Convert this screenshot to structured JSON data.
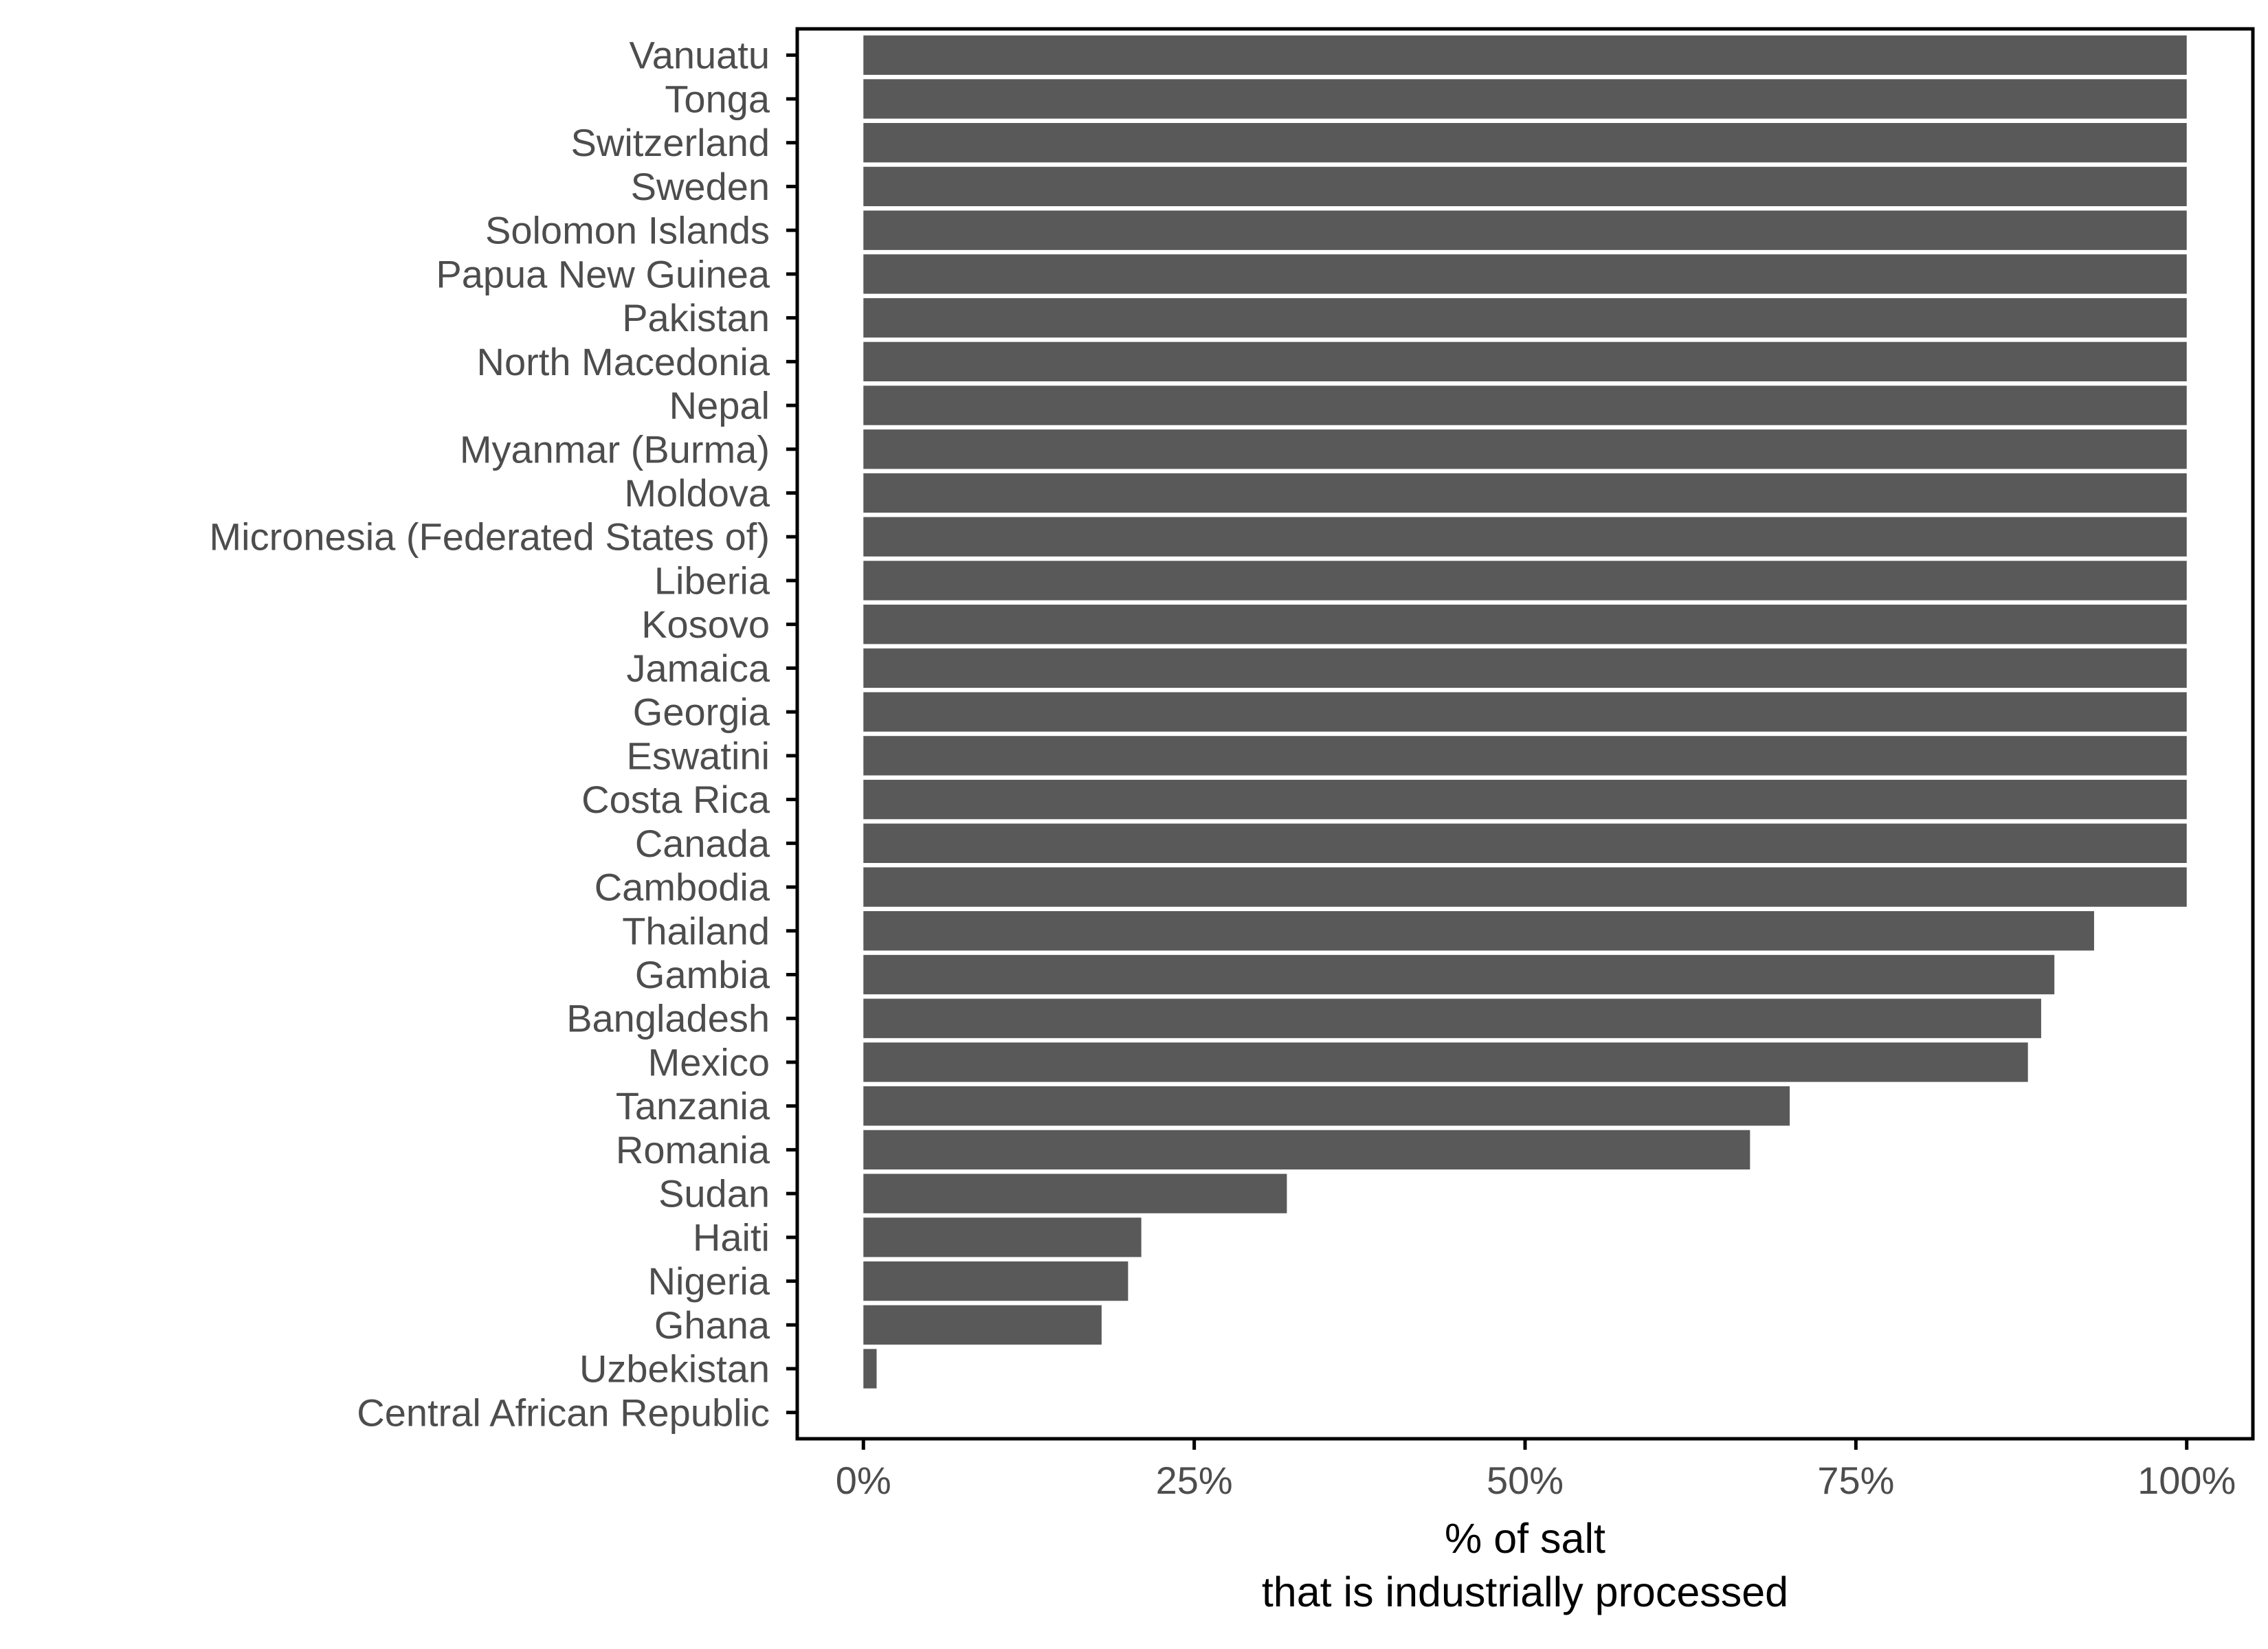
{
  "chart_data": {
    "type": "bar",
    "orientation": "horizontal",
    "categories": [
      "Vanuatu",
      "Tonga",
      "Switzerland",
      "Sweden",
      "Solomon Islands",
      "Papua New Guinea",
      "Pakistan",
      "North Macedonia",
      "Nepal",
      "Myanmar (Burma)",
      "Moldova",
      "Micronesia (Federated States of)",
      "Liberia",
      "Kosovo",
      "Jamaica",
      "Georgia",
      "Eswatini",
      "Costa Rica",
      "Canada",
      "Cambodia",
      "Thailand",
      "Gambia",
      "Bangladesh",
      "Mexico",
      "Tanzania",
      "Romania",
      "Sudan",
      "Haiti",
      "Nigeria",
      "Ghana",
      "Uzbekistan",
      "Central African Republic"
    ],
    "values": [
      100,
      100,
      100,
      100,
      100,
      100,
      100,
      100,
      100,
      100,
      100,
      100,
      100,
      100,
      100,
      100,
      100,
      100,
      100,
      100,
      93,
      90,
      89,
      88,
      70,
      67,
      32,
      21,
      20,
      18,
      1,
      0
    ],
    "xlabel_lines": [
      "% of salt",
      "that is industrially processed"
    ],
    "ylabel": "",
    "xlim": [
      -5,
      105
    ],
    "xticks": [
      0,
      25,
      50,
      75,
      100
    ],
    "xtick_labels": [
      "0%",
      "25%",
      "50%",
      "75%",
      "100%"
    ],
    "grid": false,
    "legend": "none",
    "bar_color": "#595959",
    "axis_color": "#000000",
    "tick_label_color": "#4d4d4d"
  }
}
